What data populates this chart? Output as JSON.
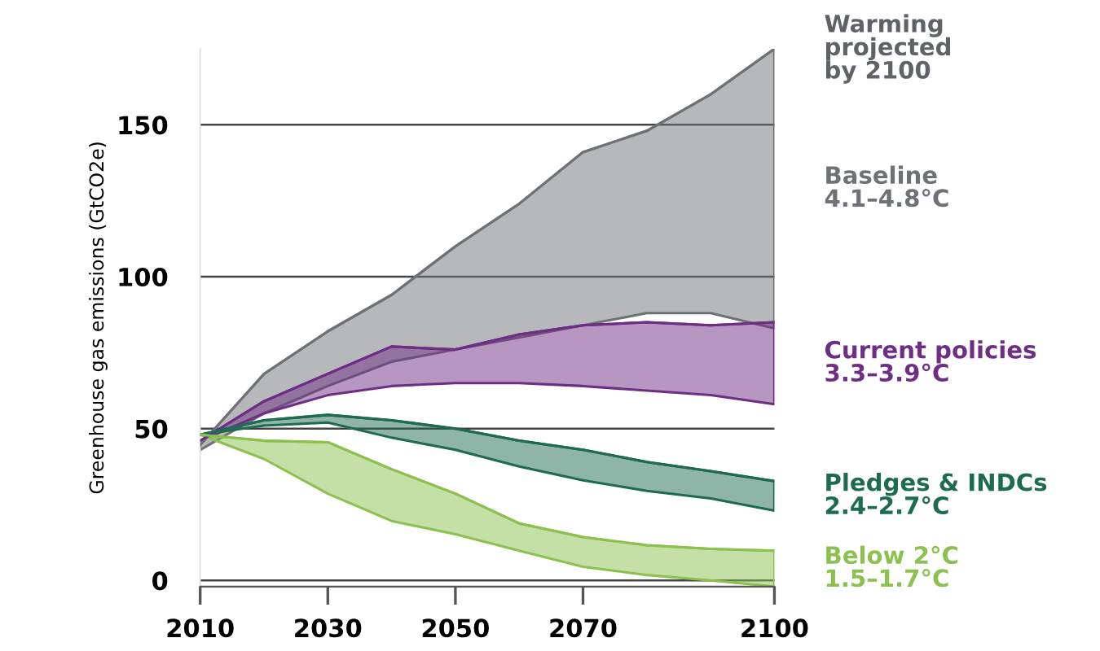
{
  "chart_data": {
    "type": "line",
    "ylabel": "Greenhouse gas emissions (GtCO2e)",
    "x": [
      2010,
      2020,
      2030,
      2040,
      2050,
      2060,
      2070,
      2080,
      2090,
      2100
    ],
    "xlim": [
      2010,
      2100
    ],
    "xticks": [
      2010,
      2030,
      2050,
      2070,
      2100
    ],
    "ylim": [
      -2,
      175
    ],
    "yticks": [
      0,
      50,
      100,
      150
    ],
    "grid": "y",
    "legend": false,
    "annotations": [
      {
        "text": "Warming\nprojected\nby 2100",
        "x": 2100,
        "y": 175
      }
    ],
    "series": [
      {
        "name": "Baseline\n4.1–4.8°C",
        "color": "#6e7175",
        "values": [
          44.6,
          68,
          82,
          94,
          110,
          124,
          141,
          148,
          160,
          175
        ],
        "upper": [
          44.6,
          68,
          82,
          94,
          110,
          124,
          141,
          148,
          160,
          175
        ],
        "lower": [
          43,
          55,
          64,
          72,
          76,
          80,
          84,
          88,
          88,
          83
        ]
      },
      {
        "name": "Current policies\n3.3–3.9°C",
        "color": "#6f2e86",
        "values": [
          46,
          59,
          68,
          77,
          76,
          81,
          84,
          85,
          84,
          85
        ],
        "upper": [
          46,
          59,
          68,
          77,
          76,
          81,
          84,
          85,
          84,
          85
        ],
        "lower": [
          46,
          55,
          61,
          64,
          65,
          65,
          64,
          62.5,
          61,
          58
        ]
      },
      {
        "name": "Pledges & INDCs\n2.4–2.7°C",
        "color": "#1d6b50",
        "values": [
          48,
          52.7,
          54.5,
          52.7,
          50,
          46,
          43,
          39,
          36,
          32.7
        ],
        "upper": [
          48,
          52.7,
          54.5,
          52.7,
          50,
          46,
          43,
          39,
          36,
          32.7
        ],
        "lower": [
          48,
          51,
          52,
          47,
          43,
          37.5,
          33,
          29.5,
          27,
          23
        ]
      },
      {
        "name": "Below 2°C\n1.5–1.7°C",
        "color": "#8cc14f",
        "values": [
          48,
          46,
          45.5,
          36.6,
          28.6,
          18.8,
          14.3,
          11.6,
          10.4,
          9.8
        ],
        "upper": [
          48,
          46,
          45.5,
          36.6,
          28.6,
          18.8,
          14.3,
          11.6,
          10.4,
          9.8
        ],
        "lower": [
          48,
          40,
          28.6,
          19.6,
          15.2,
          9.8,
          4.5,
          1.8,
          0,
          -2
        ]
      }
    ]
  }
}
